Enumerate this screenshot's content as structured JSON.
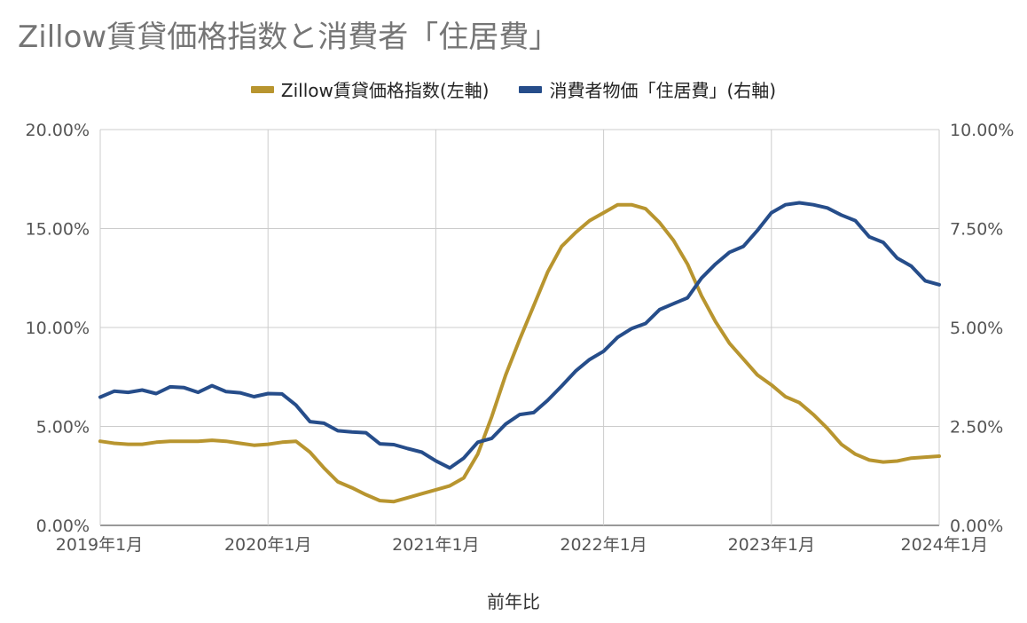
{
  "title": "Zillow賃貸価格指数と消費者「住居費」",
  "chart_data": {
    "type": "line",
    "title": "Zillow賃貸価格指数と消費者「住居費」",
    "xlabel": "前年比",
    "x_tick_labels": [
      "2019年1月",
      "2020年1月",
      "2021年1月",
      "2022年1月",
      "2023年1月",
      "2024年1月"
    ],
    "left_axis": {
      "min": 0,
      "max": 20,
      "ticks": [
        "0.00%",
        "5.00%",
        "10.00%",
        "15.00%",
        "20.00%"
      ]
    },
    "right_axis": {
      "min": 0,
      "max": 10,
      "ticks": [
        "0.00%",
        "2.50%",
        "5.00%",
        "7.50%",
        "10.00%"
      ]
    },
    "grid": true,
    "legend_position": "top",
    "x_range": [
      "2019-01",
      "2024-01"
    ],
    "series": [
      {
        "name": "Zillow賃貸価格指数(左軸)",
        "axis": "left",
        "color": "#b8952f",
        "x": [
          "2019-01",
          "2019-02",
          "2019-03",
          "2019-04",
          "2019-05",
          "2019-06",
          "2019-07",
          "2019-08",
          "2019-09",
          "2019-10",
          "2019-11",
          "2019-12",
          "2020-01",
          "2020-02",
          "2020-03",
          "2020-04",
          "2020-05",
          "2020-06",
          "2020-07",
          "2020-08",
          "2020-09",
          "2020-10",
          "2020-11",
          "2020-12",
          "2021-01",
          "2021-02",
          "2021-03",
          "2021-04",
          "2021-05",
          "2021-06",
          "2021-07",
          "2021-08",
          "2021-09",
          "2021-10",
          "2021-11",
          "2021-12",
          "2022-01",
          "2022-02",
          "2022-03",
          "2022-04",
          "2022-05",
          "2022-06",
          "2022-07",
          "2022-08",
          "2022-09",
          "2022-10",
          "2022-11",
          "2022-12",
          "2023-01",
          "2023-02",
          "2023-03",
          "2023-04",
          "2023-05",
          "2023-06",
          "2023-07",
          "2023-08",
          "2023-09",
          "2023-10",
          "2023-11",
          "2023-12",
          "2024-01"
        ],
        "values": [
          4.25,
          4.15,
          4.1,
          4.1,
          4.2,
          4.25,
          4.25,
          4.25,
          4.3,
          4.25,
          4.15,
          4.05,
          4.1,
          4.2,
          4.25,
          3.7,
          2.9,
          2.2,
          1.9,
          1.55,
          1.25,
          1.2,
          1.4,
          1.6,
          1.8,
          2.0,
          2.4,
          3.6,
          5.5,
          7.6,
          9.4,
          11.1,
          12.8,
          14.1,
          14.8,
          15.4,
          15.8,
          16.2,
          16.2,
          16.0,
          15.3,
          14.4,
          13.2,
          11.6,
          10.3,
          9.2,
          8.4,
          7.6,
          7.1,
          6.5,
          6.2,
          5.6,
          4.9,
          4.1,
          3.6,
          3.3,
          3.2,
          3.25,
          3.4,
          3.45,
          3.5
        ]
      },
      {
        "name": "消費者物価「住居費」(右軸)",
        "axis": "right",
        "color": "#264d8a",
        "x": [
          "2019-01",
          "2019-02",
          "2019-03",
          "2019-04",
          "2019-05",
          "2019-06",
          "2019-07",
          "2019-08",
          "2019-09",
          "2019-10",
          "2019-11",
          "2019-12",
          "2020-01",
          "2020-02",
          "2020-03",
          "2020-04",
          "2020-05",
          "2020-06",
          "2020-07",
          "2020-08",
          "2020-09",
          "2020-10",
          "2020-11",
          "2020-12",
          "2021-01",
          "2021-02",
          "2021-03",
          "2021-04",
          "2021-05",
          "2021-06",
          "2021-07",
          "2021-08",
          "2021-09",
          "2021-10",
          "2021-11",
          "2021-12",
          "2022-01",
          "2022-02",
          "2022-03",
          "2022-04",
          "2022-05",
          "2022-06",
          "2022-07",
          "2022-08",
          "2022-09",
          "2022-10",
          "2022-11",
          "2022-12",
          "2023-01",
          "2023-02",
          "2023-03",
          "2023-04",
          "2023-05",
          "2023-06",
          "2023-07",
          "2023-08",
          "2023-09",
          "2023-10",
          "2023-11",
          "2023-12",
          "2024-01"
        ],
        "values": [
          3.24,
          3.39,
          3.36,
          3.42,
          3.33,
          3.5,
          3.48,
          3.36,
          3.53,
          3.38,
          3.35,
          3.25,
          3.33,
          3.32,
          3.04,
          2.62,
          2.58,
          2.39,
          2.36,
          2.34,
          2.06,
          2.04,
          1.94,
          1.85,
          1.63,
          1.45,
          1.7,
          2.1,
          2.2,
          2.56,
          2.8,
          2.85,
          3.16,
          3.52,
          3.9,
          4.19,
          4.4,
          4.75,
          4.97,
          5.1,
          5.45,
          5.6,
          5.75,
          6.25,
          6.6,
          6.9,
          7.05,
          7.45,
          7.9,
          8.1,
          8.15,
          8.1,
          8.02,
          7.84,
          7.7,
          7.29,
          7.15,
          6.75,
          6.55,
          6.18,
          6.08
        ]
      }
    ]
  }
}
